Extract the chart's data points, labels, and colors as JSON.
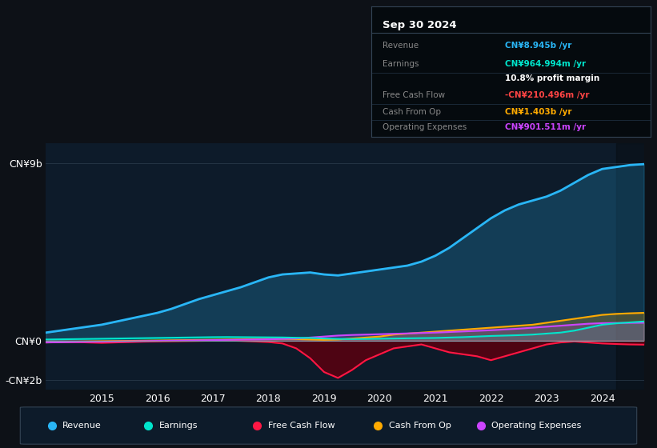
{
  "bg_color": "#0d1117",
  "plot_bg_color": "#0d1b2a",
  "title_text": "Sep 30 2024",
  "info_rows": [
    {
      "label": "Revenue",
      "value": "CN¥8.945b /yr",
      "value_color": "#29b6f6"
    },
    {
      "label": "Earnings",
      "value": "CN¥964.994m /yr",
      "value_color": "#00e5cc"
    },
    {
      "label": "",
      "value": "10.8% profit margin",
      "value_color": "#ffffff"
    },
    {
      "label": "Free Cash Flow",
      "value": "-CN¥210.496m /yr",
      "value_color": "#ff4444"
    },
    {
      "label": "Cash From Op",
      "value": "CN¥1.403b /yr",
      "value_color": "#ffaa00"
    },
    {
      "label": "Operating Expenses",
      "value": "CN¥901.511m /yr",
      "value_color": "#cc44ff"
    }
  ],
  "ylim": [
    -2500000000.0,
    10000000000.0
  ],
  "yticks": [
    -2000000000.0,
    0,
    9000000000.0
  ],
  "ytick_labels": [
    "-CN¥2b",
    "CN¥0",
    "CN¥9b"
  ],
  "years": [
    2014.0,
    2014.25,
    2014.5,
    2014.75,
    2015.0,
    2015.25,
    2015.5,
    2015.75,
    2016.0,
    2016.25,
    2016.5,
    2016.75,
    2017.0,
    2017.25,
    2017.5,
    2017.75,
    2018.0,
    2018.25,
    2018.5,
    2018.75,
    2019.0,
    2019.25,
    2019.5,
    2019.75,
    2020.0,
    2020.25,
    2020.5,
    2020.75,
    2021.0,
    2021.25,
    2021.5,
    2021.75,
    2022.0,
    2022.25,
    2022.5,
    2022.75,
    2023.0,
    2023.25,
    2023.5,
    2023.75,
    2024.0,
    2024.25,
    2024.5,
    2024.75
  ],
  "revenue": [
    400000000.0,
    500000000.0,
    600000000.0,
    700000000.0,
    800000000.0,
    950000000.0,
    1100000000.0,
    1250000000.0,
    1400000000.0,
    1600000000.0,
    1850000000.0,
    2100000000.0,
    2300000000.0,
    2500000000.0,
    2700000000.0,
    2950000000.0,
    3200000000.0,
    3350000000.0,
    3400000000.0,
    3450000000.0,
    3350000000.0,
    3300000000.0,
    3400000000.0,
    3500000000.0,
    3600000000.0,
    3700000000.0,
    3800000000.0,
    4000000000.0,
    4300000000.0,
    4700000000.0,
    5200000000.0,
    5700000000.0,
    6200000000.0,
    6600000000.0,
    6900000000.0,
    7100000000.0,
    7300000000.0,
    7600000000.0,
    8000000000.0,
    8400000000.0,
    8700000000.0,
    8800000000.0,
    8900000000.0,
    8945000000.0
  ],
  "earnings": [
    50000000.0,
    60000000.0,
    70000000.0,
    80000000.0,
    90000000.0,
    100000000.0,
    110000000.0,
    120000000.0,
    130000000.0,
    140000000.0,
    150000000.0,
    160000000.0,
    170000000.0,
    175000000.0,
    170000000.0,
    165000000.0,
    160000000.0,
    155000000.0,
    140000000.0,
    130000000.0,
    100000000.0,
    80000000.0,
    70000000.0,
    80000000.0,
    90000000.0,
    100000000.0,
    110000000.0,
    120000000.0,
    130000000.0,
    150000000.0,
    170000000.0,
    200000000.0,
    230000000.0,
    250000000.0,
    270000000.0,
    300000000.0,
    350000000.0,
    400000000.0,
    500000000.0,
    650000000.0,
    800000000.0,
    870000000.0,
    920000000.0,
    964994000.0
  ],
  "free_cash_flow": [
    -50000000.0,
    -60000000.0,
    -80000000.0,
    -100000000.0,
    -120000000.0,
    -100000000.0,
    -80000000.0,
    -60000000.0,
    -50000000.0,
    -40000000.0,
    -30000000.0,
    -20000000.0,
    -10000000.0,
    0,
    -20000000.0,
    -50000000.0,
    -80000000.0,
    -150000000.0,
    -400000000.0,
    -900000000.0,
    -1600000000.0,
    -1900000000.0,
    -1500000000.0,
    -1000000000.0,
    -700000000.0,
    -400000000.0,
    -300000000.0,
    -200000000.0,
    -400000000.0,
    -600000000.0,
    -700000000.0,
    -800000000.0,
    -1000000000.0,
    -800000000.0,
    -600000000.0,
    -400000000.0,
    -200000000.0,
    -100000000.0,
    -50000000.0,
    -100000000.0,
    -150000000.0,
    -180000000.0,
    -200000000.0,
    -210496000.0
  ],
  "cash_from_op": [
    -100000000.0,
    -80000000.0,
    -60000000.0,
    -50000000.0,
    -40000000.0,
    -30000000.0,
    -20000000.0,
    -10000000.0,
    0,
    10000000.0,
    20000000.0,
    30000000.0,
    40000000.0,
    50000000.0,
    60000000.0,
    70000000.0,
    80000000.0,
    90000000.0,
    70000000.0,
    50000000.0,
    30000000.0,
    50000000.0,
    100000000.0,
    150000000.0,
    200000000.0,
    300000000.0,
    350000000.0,
    400000000.0,
    450000000.0,
    500000000.0,
    550000000.0,
    600000000.0,
    650000000.0,
    700000000.0,
    750000000.0,
    800000000.0,
    900000000.0,
    1000000000.0,
    1100000000.0,
    1200000000.0,
    1300000000.0,
    1350000000.0,
    1380000000.0,
    1403000000.0
  ],
  "operating_expenses": [
    -100000000.0,
    -90000000.0,
    -80000000.0,
    -70000000.0,
    -60000000.0,
    -50000000.0,
    -40000000.0,
    -30000000.0,
    -20000000.0,
    -10000000.0,
    0,
    10000000.0,
    20000000.0,
    30000000.0,
    40000000.0,
    50000000.0,
    60000000.0,
    80000000.0,
    100000000.0,
    150000000.0,
    200000000.0,
    250000000.0,
    280000000.0,
    300000000.0,
    320000000.0,
    340000000.0,
    360000000.0,
    380000000.0,
    400000000.0,
    430000000.0,
    460000000.0,
    490000000.0,
    520000000.0,
    560000000.0,
    600000000.0,
    650000000.0,
    700000000.0,
    750000000.0,
    800000000.0,
    850000000.0,
    880000000.0,
    890000000.0,
    895000000.0,
    901511000.0
  ],
  "revenue_color": "#29b6f6",
  "earnings_color": "#00e5cc",
  "fcf_color": "#ff1744",
  "cfop_color": "#ffaa00",
  "opex_color": "#cc44ff",
  "legend_items": [
    "Revenue",
    "Earnings",
    "Free Cash Flow",
    "Cash From Op",
    "Operating Expenses"
  ],
  "legend_colors": [
    "#29b6f6",
    "#00e5cc",
    "#ff1744",
    "#ffaa00",
    "#cc44ff"
  ],
  "xtick_years": [
    2015,
    2016,
    2017,
    2018,
    2019,
    2020,
    2021,
    2022,
    2023,
    2024
  ]
}
